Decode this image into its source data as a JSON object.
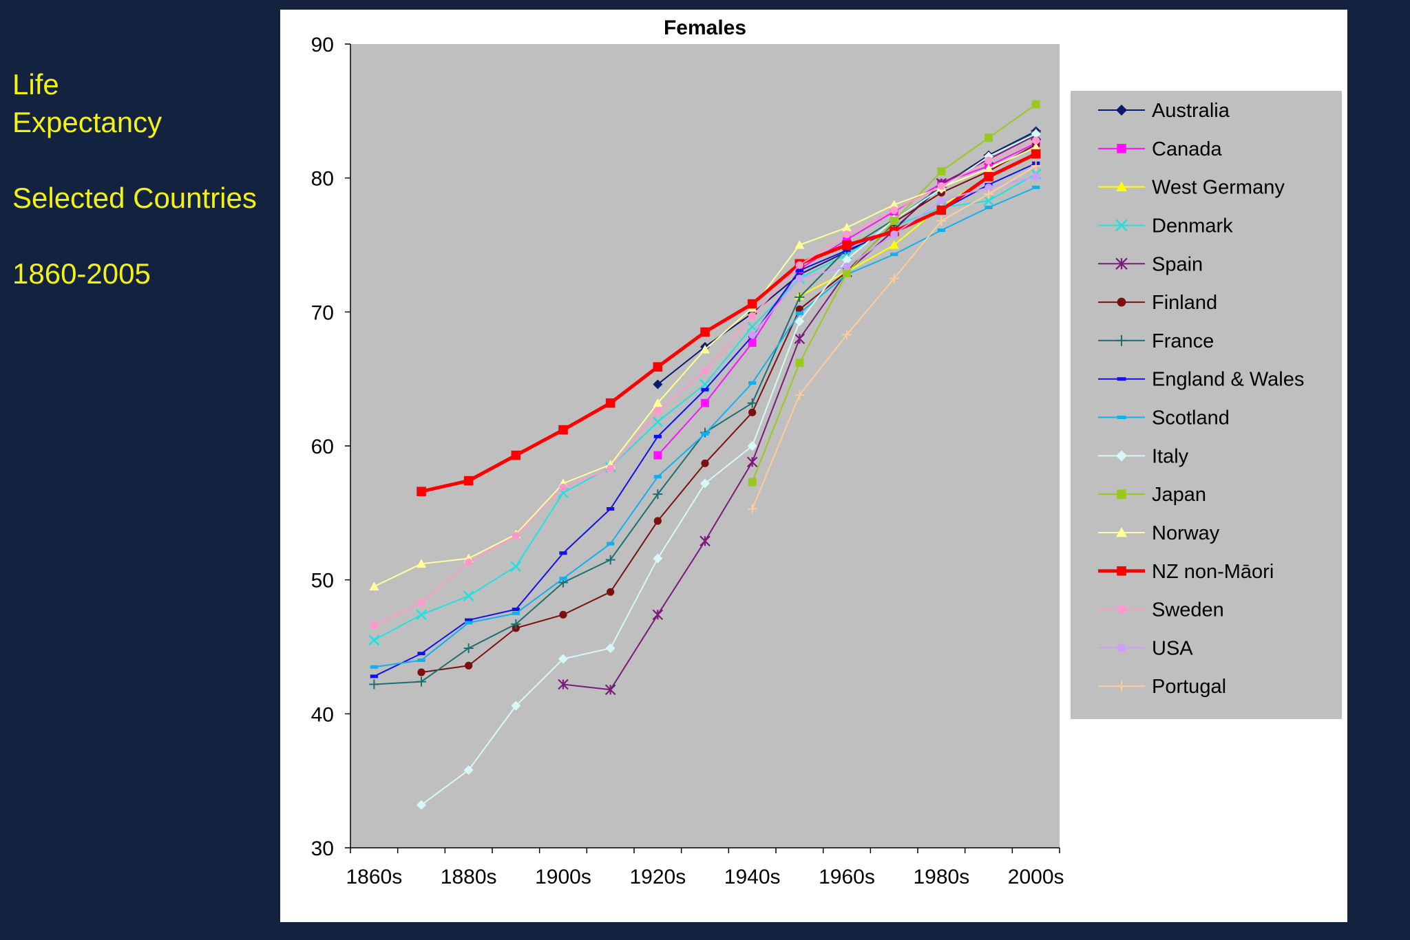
{
  "side_text": {
    "line1": "Life",
    "line2": "Expectancy",
    "line3": "Selected Countries",
    "line4": "1860-2005"
  },
  "chart_data": {
    "type": "line",
    "title": "Females",
    "xlabel": "",
    "ylabel": "",
    "ylim": [
      30,
      90
    ],
    "yticks": [
      30,
      40,
      50,
      60,
      70,
      80,
      90
    ],
    "x": [
      "1860s",
      "1870s",
      "1880s",
      "1890s",
      "1900s",
      "1910s",
      "1920s",
      "1930s",
      "1940s",
      "1950s",
      "1960s",
      "1970s",
      "1980s",
      "1990s",
      "2000s"
    ],
    "xtick_labels": [
      "1860s",
      "1880s",
      "1900s",
      "1920s",
      "1940s",
      "1960s",
      "1980s",
      "2000s"
    ],
    "grid": false,
    "legend_position": "right",
    "plot_background": "#c0bfbf",
    "series": [
      {
        "name": "Australia",
        "color": "#0d1a6e",
        "marker": "diamond",
        "values": [
          null,
          null,
          null,
          null,
          null,
          null,
          64.6,
          67.4,
          69.9,
          72.8,
          74.5,
          76.2,
          79.4,
          81.7,
          83.5
        ]
      },
      {
        "name": "Canada",
        "color": "#ff10ff",
        "marker": "square",
        "values": [
          null,
          null,
          null,
          null,
          null,
          null,
          59.3,
          63.2,
          67.7,
          73.2,
          75.4,
          77.5,
          79.6,
          80.9,
          82.6
        ]
      },
      {
        "name": "West Germany",
        "color": "#ffff00",
        "marker": "triangle",
        "values": [
          null,
          null,
          null,
          null,
          null,
          null,
          null,
          null,
          null,
          71.2,
          73.0,
          75.0,
          77.9,
          80.1,
          81.8
        ]
      },
      {
        "name": "Denmark",
        "color": "#22e0e0",
        "marker": "x",
        "values": [
          45.5,
          47.4,
          48.8,
          51.0,
          56.5,
          58.4,
          61.8,
          64.6,
          68.9,
          72.5,
          74.3,
          76.4,
          77.8,
          78.3,
          80.3
        ]
      },
      {
        "name": "Spain",
        "color": "#7a1a7a",
        "marker": "star",
        "values": [
          null,
          null,
          null,
          null,
          42.2,
          41.8,
          47.4,
          52.9,
          58.8,
          68.0,
          73.0,
          76.1,
          79.6,
          81.4,
          83.2
        ]
      },
      {
        "name": "Finland",
        "color": "#7a1010",
        "marker": "circle",
        "values": [
          null,
          43.1,
          43.6,
          46.4,
          47.4,
          49.1,
          54.4,
          58.7,
          62.5,
          70.2,
          73.0,
          76.7,
          78.9,
          80.5,
          82.5
        ]
      },
      {
        "name": "France",
        "color": "#1a7070",
        "marker": "plus",
        "values": [
          42.2,
          42.4,
          44.9,
          46.7,
          49.8,
          51.5,
          56.4,
          61.0,
          63.2,
          71.1,
          74.7,
          76.9,
          79.3,
          81.6,
          83.4
        ]
      },
      {
        "name": "England & Wales",
        "color": "#1010f0",
        "marker": "dash",
        "values": [
          42.8,
          44.5,
          47.0,
          47.8,
          52.0,
          55.3,
          60.7,
          64.2,
          68.2,
          73.1,
          74.6,
          76.1,
          77.6,
          79.5,
          81.1
        ]
      },
      {
        "name": "Scotland",
        "color": "#10b0f0",
        "marker": "dash",
        "values": [
          43.5,
          44.0,
          46.8,
          47.5,
          50.1,
          52.7,
          57.7,
          60.9,
          64.7,
          69.9,
          72.8,
          74.3,
          76.1,
          77.8,
          79.3
        ]
      },
      {
        "name": "Italy",
        "color": "#d8f8f8",
        "marker": "diamond",
        "values": [
          null,
          33.2,
          35.8,
          40.6,
          44.1,
          44.9,
          51.6,
          57.2,
          60.0,
          69.3,
          73.9,
          76.9,
          79.2,
          81.6,
          83.3
        ]
      },
      {
        "name": "Japan",
        "color": "#99c91c",
        "marker": "square",
        "values": [
          null,
          null,
          null,
          null,
          null,
          null,
          null,
          null,
          57.3,
          66.2,
          72.9,
          76.8,
          80.5,
          83.0,
          85.5
        ]
      },
      {
        "name": "Norway",
        "color": "#ffff99",
        "marker": "triangle",
        "values": [
          49.5,
          51.2,
          51.6,
          53.4,
          57.2,
          58.6,
          63.2,
          67.2,
          70.3,
          75.0,
          76.3,
          78.0,
          79.3,
          80.7,
          82.3
        ]
      },
      {
        "name": "NZ non-Māori",
        "color": "#ff0000",
        "marker": "square",
        "values": [
          null,
          56.6,
          57.4,
          59.3,
          61.2,
          63.2,
          65.9,
          68.5,
          70.6,
          73.6,
          75.0,
          76.0,
          77.6,
          80.1,
          81.8
        ]
      },
      {
        "name": "Sweden",
        "color": "#ff99cc",
        "marker": "circle",
        "values": [
          46.6,
          48.3,
          51.3,
          53.3,
          56.9,
          58.3,
          62.6,
          65.6,
          69.7,
          73.5,
          75.8,
          77.6,
          79.4,
          81.3,
          82.8
        ]
      },
      {
        "name": "USA",
        "color": "#c9a0ff",
        "marker": "circle",
        "values": [
          null,
          null,
          null,
          null,
          null,
          null,
          null,
          null,
          68.3,
          72.5,
          73.4,
          75.8,
          78.3,
          79.3,
          80.1
        ]
      },
      {
        "name": "Portugal",
        "color": "#ffcc99",
        "marker": "plus",
        "values": [
          null,
          null,
          null,
          null,
          null,
          null,
          null,
          null,
          55.3,
          63.8,
          68.3,
          72.5,
          76.8,
          78.8,
          80.9
        ]
      }
    ]
  }
}
